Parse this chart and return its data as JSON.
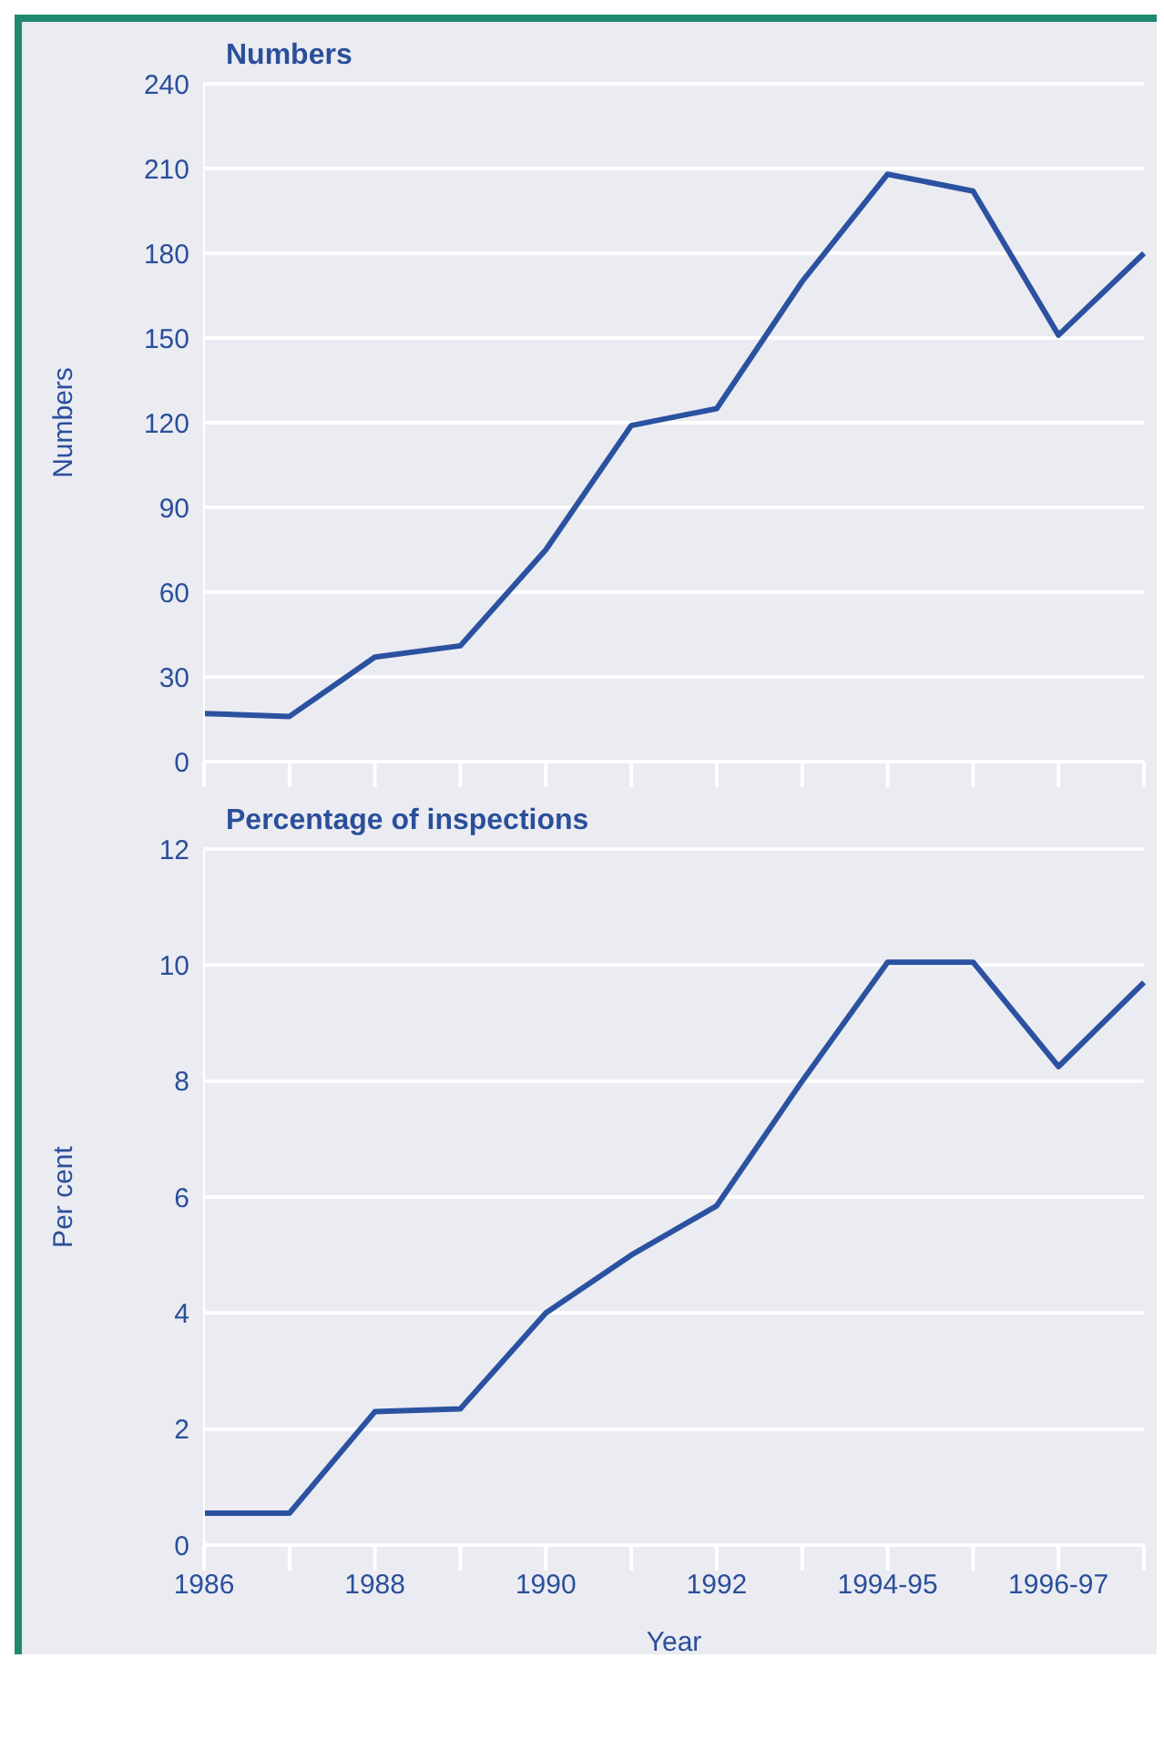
{
  "chart_data": [
    {
      "type": "line",
      "title": "Numbers",
      "ylabel": "Numbers",
      "categories": [
        "1986",
        null,
        "1988",
        null,
        "1990",
        null,
        "1992",
        null,
        "1994-95",
        null,
        "1996-97",
        null
      ],
      "series": [
        {
          "color": "#2a52a0",
          "values": [
            17,
            16,
            37,
            41,
            75,
            119,
            125,
            170,
            208,
            202,
            151,
            180
          ]
        }
      ],
      "ylim": [
        0,
        240
      ],
      "yticks": [
        0,
        30,
        60,
        90,
        120,
        150,
        180,
        210,
        240
      ],
      "grid": "y",
      "tick_labels": "y"
    },
    {
      "type": "line",
      "title": "Percentage of inspections",
      "ylabel": "Per cent",
      "xlabel": "Year",
      "categories": [
        "1986",
        null,
        "1988",
        null,
        "1990",
        null,
        "1992",
        null,
        "1994-95",
        null,
        "1996-97",
        null
      ],
      "series": [
        {
          "color": "#2a52a0",
          "values": [
            0.55,
            0.55,
            2.3,
            2.35,
            4.0,
            5.0,
            5.85,
            8.0,
            10.05,
            10.05,
            8.25,
            9.7
          ]
        }
      ],
      "ylim": [
        0,
        12
      ],
      "yticks": [
        0,
        2,
        4,
        6,
        8,
        10,
        12
      ],
      "grid": "y"
    }
  ]
}
